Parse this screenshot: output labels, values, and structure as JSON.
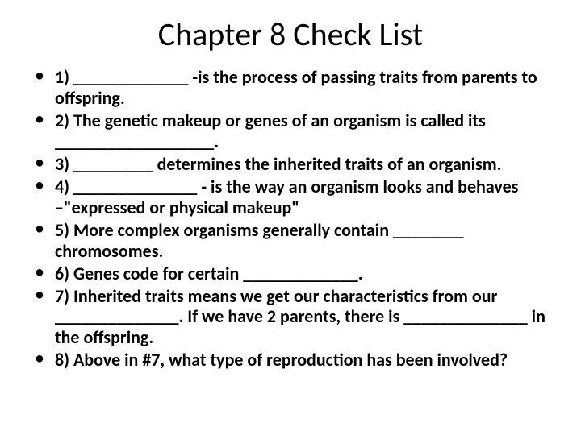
{
  "title": "Chapter 8 Check List",
  "title_fontsize": 40,
  "body_fontsize": 22,
  "background_color": "#ffffff",
  "text_color": "#000000",
  "font_family": "Calibri",
  "items": [
    "1) _____________ -is the process of passing traits from parents to offspring.",
    "2) The genetic makeup or genes of an organism is called its __________________.",
    "3) _________ determines the inherited traits of an organism.",
    "4) ______________ - is the way an organism looks and behaves –\"expressed or physical makeup\"",
    "5) More complex organisms generally contain ________ chromosomes.",
    "6) Genes code for certain _____________.",
    "7) Inherited traits means we get our characteristics from our ______________. If we have 2 parents, there is ______________ in the offspring.",
    "8) Above in #7, what type of reproduction has been involved?"
  ]
}
